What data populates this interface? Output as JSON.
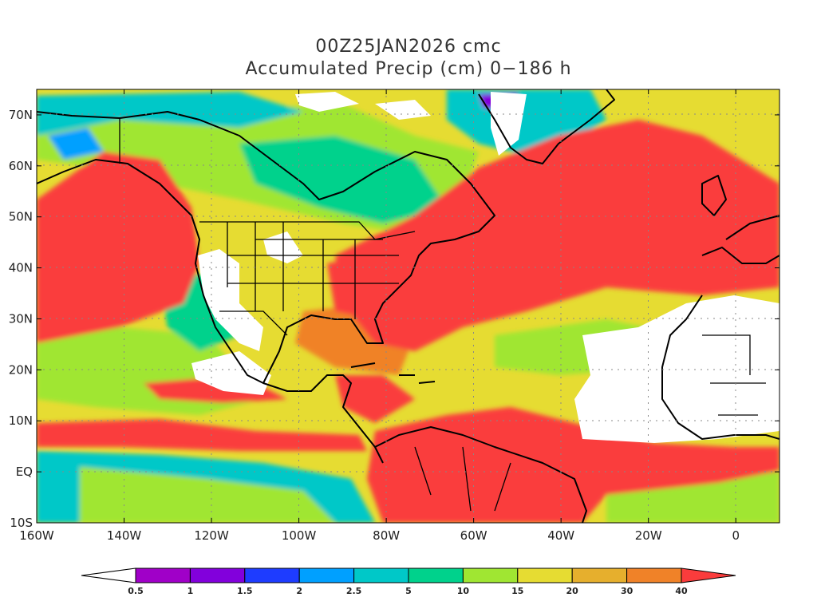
{
  "title": {
    "line1": "00Z25JAN2026 cmc",
    "line2": "Accumulated Precip (cm) 0−186 h"
  },
  "map": {
    "lon_range": [
      -160,
      10
    ],
    "lat_range": [
      -10,
      75
    ],
    "lon_ticks": [
      {
        "value": -160,
        "label": "160W"
      },
      {
        "value": -140,
        "label": "140W"
      },
      {
        "value": -120,
        "label": "120W"
      },
      {
        "value": -100,
        "label": "100W"
      },
      {
        "value": -80,
        "label": "80W"
      },
      {
        "value": -60,
        "label": "60W"
      },
      {
        "value": -40,
        "label": "40W"
      },
      {
        "value": -20,
        "label": "20W"
      },
      {
        "value": 0,
        "label": "0"
      }
    ],
    "lat_ticks": [
      {
        "value": -10,
        "label": "10S"
      },
      {
        "value": 0,
        "label": "EQ"
      },
      {
        "value": 10,
        "label": "10N"
      },
      {
        "value": 20,
        "label": "20N"
      },
      {
        "value": 30,
        "label": "30N"
      },
      {
        "value": 40,
        "label": "40N"
      },
      {
        "value": 50,
        "label": "50N"
      },
      {
        "value": 60,
        "label": "60N"
      },
      {
        "value": 70,
        "label": "70N"
      }
    ],
    "gridlines": "dotted"
  },
  "colorbar": {
    "bins": [
      {
        "color": "#ffffff"
      },
      {
        "color": "#a000c8",
        "label": "0.5"
      },
      {
        "color": "#8200dc",
        "label": "1"
      },
      {
        "color": "#1e3cff",
        "label": "1.5"
      },
      {
        "color": "#00a0ff",
        "label": "2"
      },
      {
        "color": "#00c8c8",
        "label": "2.5"
      },
      {
        "color": "#00d28c",
        "label": "5"
      },
      {
        "color": "#a0e632",
        "label": "10"
      },
      {
        "color": "#e6dc32",
        "label": "15"
      },
      {
        "color": "#e6af2d",
        "label": "20"
      },
      {
        "color": "#f08228",
        "label": "30"
      },
      {
        "color": "#fa3c3c",
        "label": "40"
      }
    ]
  }
}
